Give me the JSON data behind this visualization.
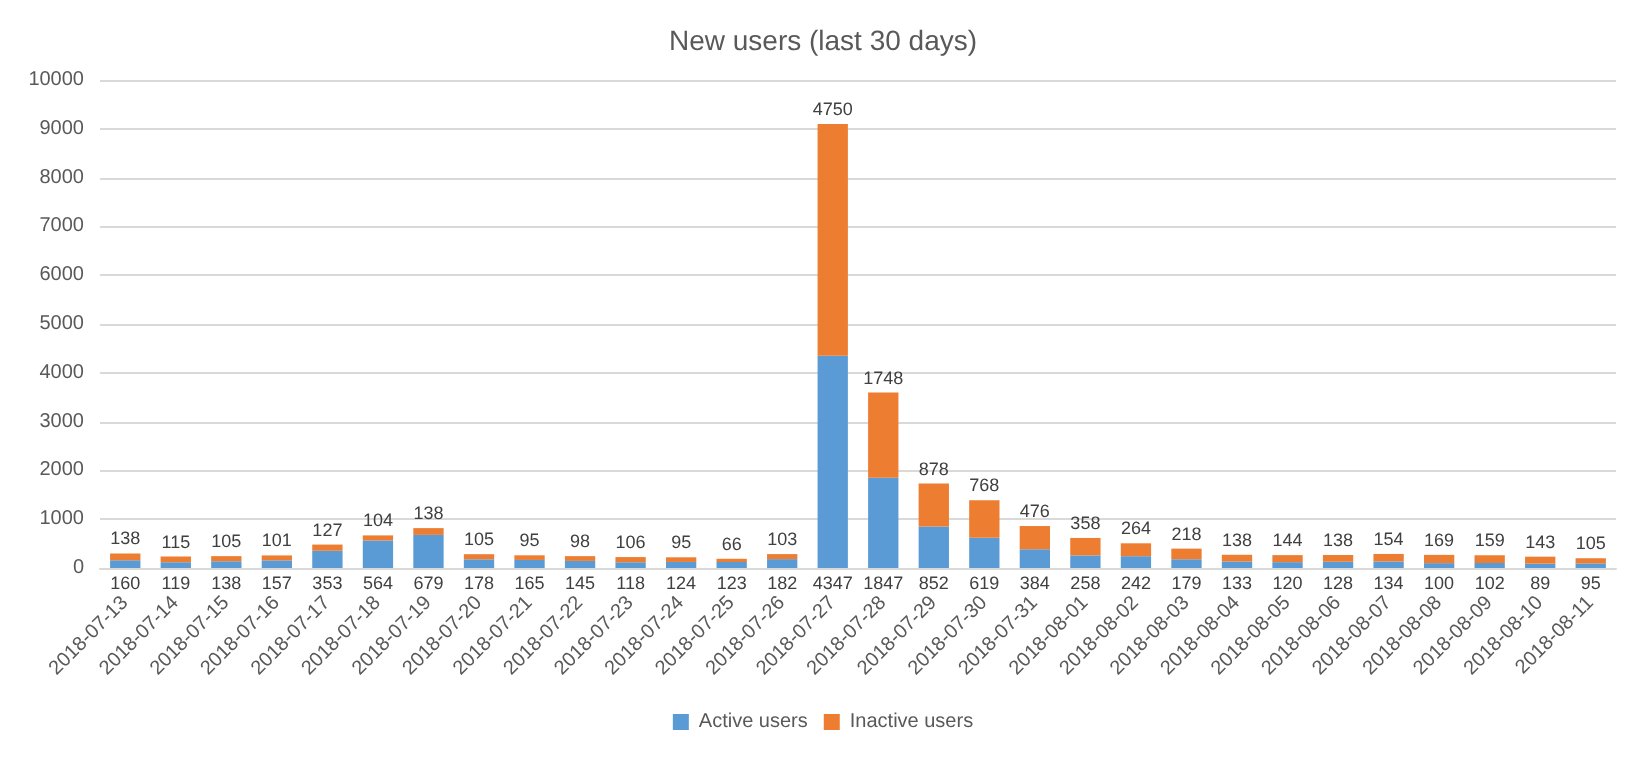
{
  "chart_data": {
    "type": "bar",
    "title": "New users (last 30 days)",
    "stacked": true,
    "data_labels": true,
    "grid": "y",
    "legend": "bottom",
    "categories": [
      "2018-07-13",
      "2018-07-14",
      "2018-07-15",
      "2018-07-16",
      "2018-07-17",
      "2018-07-18",
      "2018-07-19",
      "2018-07-20",
      "2018-07-21",
      "2018-07-22",
      "2018-07-23",
      "2018-07-24",
      "2018-07-25",
      "2018-07-26",
      "2018-07-27",
      "2018-07-28",
      "2018-07-29",
      "2018-07-30",
      "2018-07-31",
      "2018-08-01",
      "2018-08-02",
      "2018-08-03",
      "2018-08-04",
      "2018-08-05",
      "2018-08-06",
      "2018-08-07",
      "2018-08-08",
      "2018-08-09",
      "2018-08-10",
      "2018-08-11"
    ],
    "ylim": [
      0,
      10000
    ],
    "yticks": [
      0,
      1000,
      2000,
      3000,
      4000,
      5000,
      6000,
      7000,
      8000,
      9000,
      10000
    ],
    "series": [
      {
        "name": "Active users",
        "color": "#5b9bd5",
        "values": [
          160,
          119,
          138,
          157,
          353,
          564,
          679,
          178,
          165,
          145,
          118,
          124,
          123,
          182,
          4347,
          1847,
          852,
          619,
          384,
          258,
          242,
          179,
          133,
          120,
          128,
          134,
          100,
          102,
          89,
          95
        ]
      },
      {
        "name": "Inactive users",
        "color": "#ed7d31",
        "values": [
          138,
          115,
          105,
          101,
          127,
          104,
          138,
          105,
          95,
          98,
          106,
          95,
          66,
          103,
          4750,
          1748,
          878,
          768,
          476,
          358,
          264,
          218,
          138,
          144,
          138,
          154,
          169,
          159,
          143,
          105
        ]
      }
    ]
  }
}
